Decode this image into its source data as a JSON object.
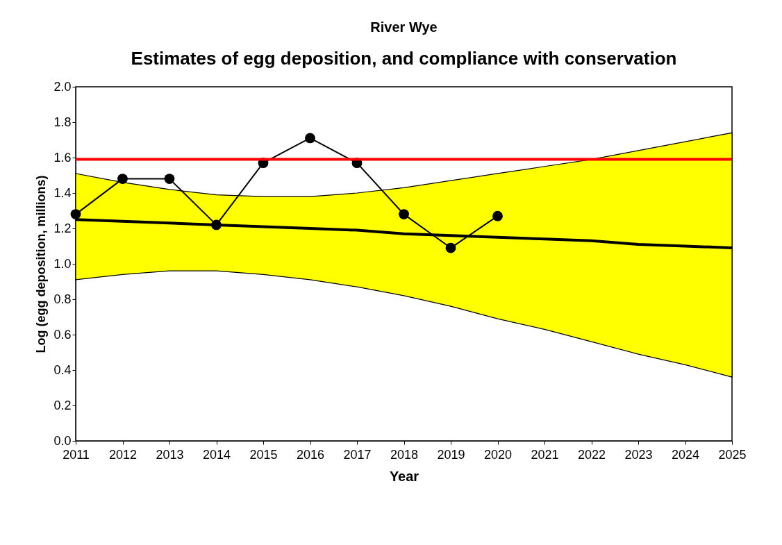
{
  "chart_data": {
    "type": "line",
    "title": "River Wye",
    "subtitle": "Estimates of egg deposition, and compliance with conservation",
    "xlabel": "Year",
    "ylabel": "Log (egg deposition, millions)",
    "x": [
      2011,
      2012,
      2013,
      2014,
      2015,
      2016,
      2017,
      2018,
      2019,
      2020
    ],
    "series": [
      {
        "color": "#000000",
        "marker": "circle",
        "values": [
          1.28,
          1.48,
          1.48,
          1.22,
          1.57,
          1.71,
          1.57,
          1.28,
          1.09,
          1.27
        ]
      },
      {
        "type": "line",
        "color": "#000000",
        "marker": "none",
        "x": [
          2011,
          2012,
          2013,
          2014,
          2015,
          2016,
          2017,
          2018,
          2019,
          2020,
          2021,
          2022,
          2023,
          2024,
          2025
        ],
        "values": [
          1.25,
          1.24,
          1.23,
          1.22,
          1.21,
          1.2,
          1.19,
          1.17,
          1.16,
          1.15,
          1.14,
          1.13,
          1.11,
          1.1,
          1.09
        ],
        "lower": [
          0.91,
          0.94,
          0.96,
          0.96,
          0.94,
          0.91,
          0.87,
          0.82,
          0.76,
          0.69,
          0.63,
          0.56,
          0.49,
          0.43,
          0.36
        ],
        "upper": [
          1.51,
          1.46,
          1.42,
          1.39,
          1.38,
          1.38,
          1.4,
          1.43,
          1.47,
          1.51,
          1.55,
          1.59,
          1.64,
          1.69,
          1.74
        ]
      }
    ],
    "ref_lines": [
      {
        "axis": "y",
        "value": 1.59,
        "color": "#ff0000"
      }
    ],
    "xlim": [
      2011,
      2025
    ],
    "xticks": [
      2011,
      2012,
      2013,
      2014,
      2015,
      2016,
      2017,
      2018,
      2019,
      2020,
      2021,
      2022,
      2023,
      2024,
      2025
    ],
    "ylim": [
      0,
      2
    ],
    "yticks": [
      {
        "value": 0,
        "label": "0.0"
      },
      {
        "value": 0.2,
        "label": "0.2"
      },
      {
        "value": 0.4,
        "label": "0.4"
      },
      {
        "value": 0.6,
        "label": "0.6"
      },
      {
        "value": 0.8,
        "label": "0.8"
      },
      {
        "value": 1,
        "label": "1.0"
      },
      {
        "value": 1.2,
        "label": "1.2"
      },
      {
        "value": 1.4,
        "label": "1.4"
      },
      {
        "value": 1.6,
        "label": "1.6"
      },
      {
        "value": 1.8,
        "label": "1.8"
      },
      {
        "value": 2,
        "label": "2.0"
      }
    ],
    "grid": false
  }
}
